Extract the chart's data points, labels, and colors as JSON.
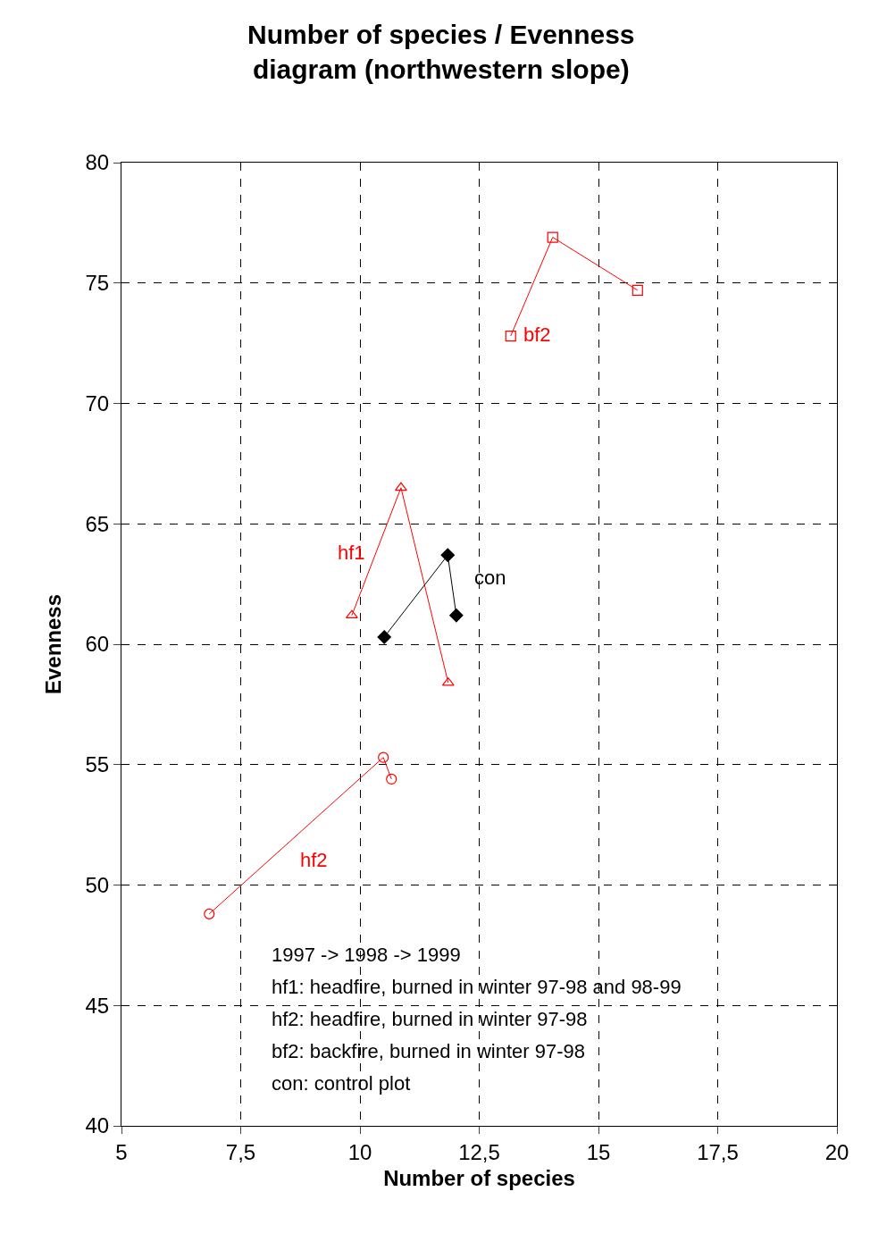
{
  "chart_data": {
    "type": "line",
    "title": "Number of species / Evenness diagram (northwestern slope)",
    "xlabel": "Number of species",
    "ylabel": "Evenness",
    "series": [
      {
        "name": "bf2",
        "color": "#ff0000",
        "marker": "square",
        "x": [
          13.16,
          14.04,
          15.82
        ],
        "values": [
          72.8,
          76.9,
          74.7
        ]
      },
      {
        "name": "hf1",
        "color": "#ff0000",
        "marker": "triangle",
        "x": [
          9.83,
          10.86,
          11.85
        ],
        "values": [
          61.2,
          66.5,
          58.4
        ]
      },
      {
        "name": "con",
        "color": "#000000",
        "marker": "diamond",
        "x": [
          10.51,
          11.84,
          12.02
        ],
        "values": [
          60.3,
          63.7,
          61.2
        ]
      },
      {
        "name": "hf2",
        "color": "#ff0000",
        "marker": "circle",
        "x": [
          6.84,
          10.49,
          10.66
        ],
        "values": [
          48.8,
          55.3,
          54.4
        ]
      }
    ],
    "xlim": [
      5,
      20
    ],
    "xticks": [
      5,
      {
        "value": 7.5,
        "label": "7,5"
      },
      10,
      {
        "value": 12.5,
        "label": "12,5"
      },
      15,
      {
        "value": 17.5,
        "label": "17,5"
      },
      20
    ],
    "ylim": [
      40,
      80
    ],
    "yticks": [
      40,
      45,
      50,
      55,
      60,
      65,
      70,
      75,
      80
    ],
    "grid": true,
    "legend": false,
    "line_style": "solid",
    "annotations": [
      "1997 -> 1998 -> 1999",
      "hf1: headfire, burned in winter 97-98 and 98-99",
      "hf2: headfire, burned in winter 97-98",
      "bf2: backfire, burned in winter 97-98",
      "con: control plot"
    ]
  }
}
